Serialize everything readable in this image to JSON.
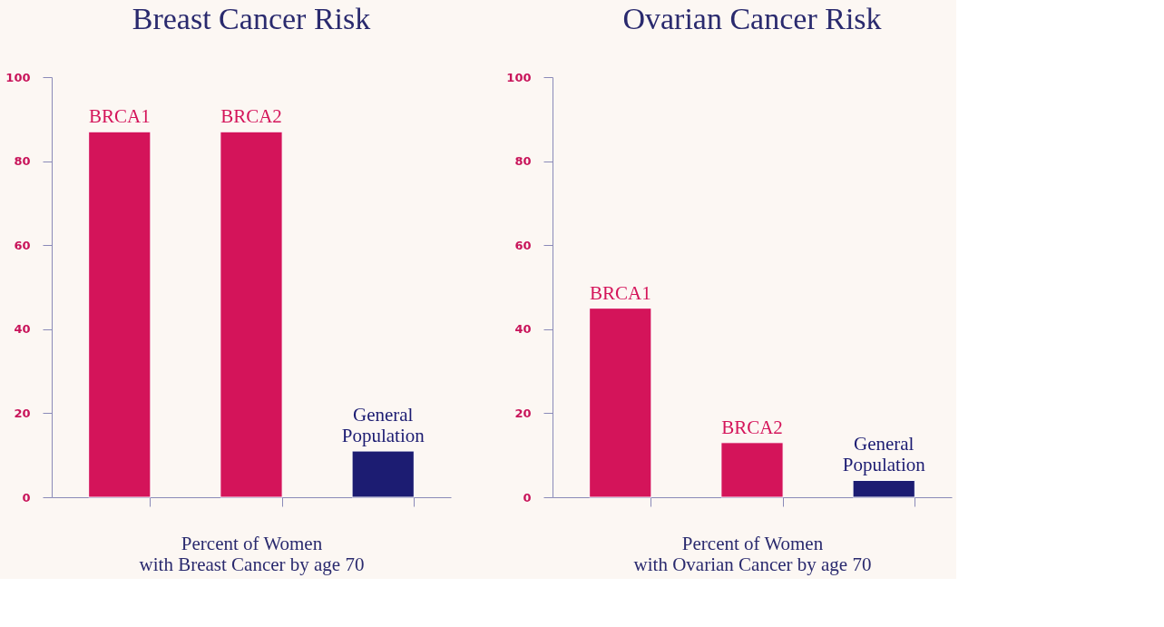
{
  "chart_data": [
    {
      "type": "bar",
      "title": "Breast Cancer Risk",
      "xlabel": "Percent of Women\nwith Breast Cancer by age 70",
      "categories": [
        "BRCA1",
        "BRCA2",
        "General Population"
      ],
      "values": [
        87,
        87,
        11
      ],
      "colors": [
        "#d4145a",
        "#d4145a",
        "#1c1c72"
      ],
      "ylim": [
        0,
        100
      ],
      "yticks": [
        0,
        20,
        40,
        60,
        80,
        100
      ],
      "grid": false,
      "legend": false,
      "tick_labels": "y"
    },
    {
      "type": "bar",
      "title": "Ovarian Cancer Risk",
      "xlabel": "Percent of Women\nwith Ovarian Cancer by age 70",
      "categories": [
        "BRCA1",
        "BRCA2",
        "General Population"
      ],
      "values": [
        45,
        13,
        4
      ],
      "colors": [
        "#d4145a",
        "#d4145a",
        "#1c1c72"
      ],
      "ylim": [
        0,
        100
      ],
      "yticks": [
        0,
        20,
        40,
        60,
        80,
        100
      ],
      "grid": false,
      "legend": false,
      "tick_labels": "y"
    }
  ]
}
